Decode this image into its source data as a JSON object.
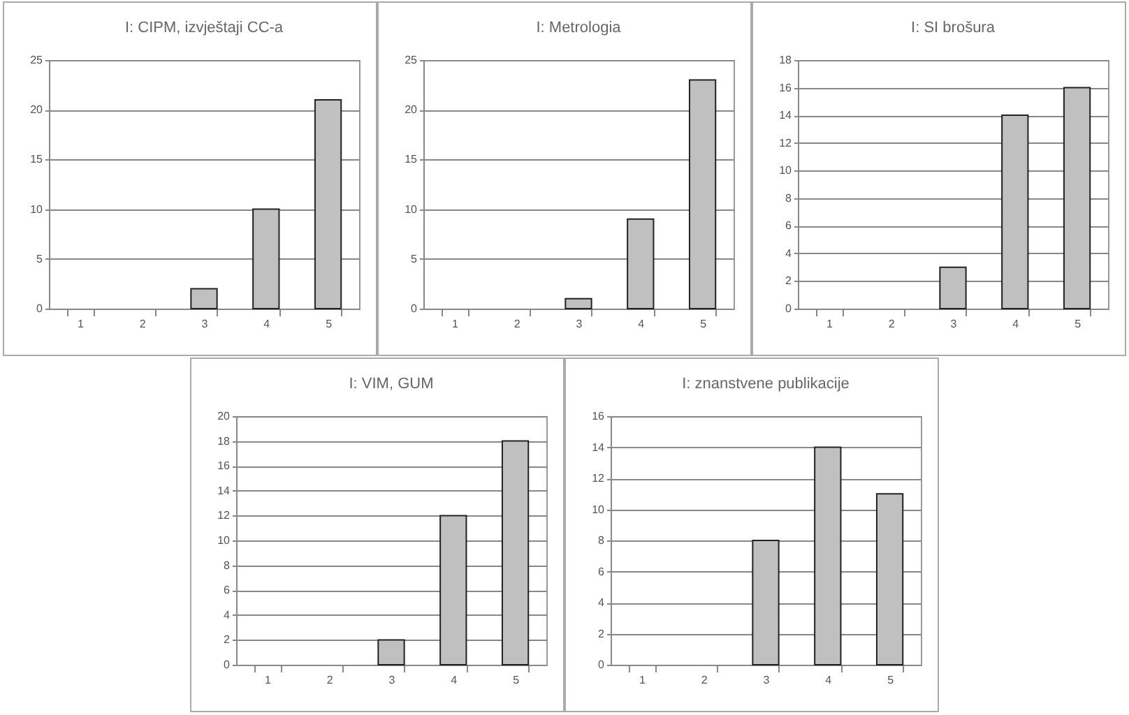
{
  "chart_data": [
    {
      "type": "bar",
      "title": "I: CIPM, izvještaji CC-a",
      "categories": [
        "1",
        "2",
        "3",
        "4",
        "5"
      ],
      "values": [
        0,
        0,
        2,
        10,
        21
      ],
      "color": "#c0c0c0",
      "ylim": [
        0,
        25
      ],
      "yticks": [
        0,
        5,
        10,
        15,
        20,
        25
      ],
      "grid": "y"
    },
    {
      "type": "bar",
      "title": "I: Metrologia",
      "categories": [
        "1",
        "2",
        "3",
        "4",
        "5"
      ],
      "values": [
        0,
        0,
        1,
        9,
        23
      ],
      "color": "#c0c0c0",
      "ylim": [
        0,
        25
      ],
      "yticks": [
        0,
        5,
        10,
        15,
        20,
        25
      ],
      "grid": "y"
    },
    {
      "type": "bar",
      "title": "I: SI brošura",
      "categories": [
        "1",
        "2",
        "3",
        "4",
        "5"
      ],
      "values": [
        0,
        0,
        3,
        14,
        16
      ],
      "color": "#c0c0c0",
      "ylim": [
        0,
        18
      ],
      "yticks": [
        0,
        2,
        4,
        6,
        8,
        10,
        12,
        14,
        16,
        18
      ],
      "grid": "y"
    },
    {
      "type": "bar",
      "title": "I: VIM, GUM",
      "categories": [
        "1",
        "2",
        "3",
        "4",
        "5"
      ],
      "values": [
        0,
        0,
        2,
        12,
        18
      ],
      "color": "#c0c0c0",
      "ylim": [
        0,
        20
      ],
      "yticks": [
        0,
        2,
        4,
        6,
        8,
        10,
        12,
        14,
        16,
        18,
        20
      ],
      "grid": "y"
    },
    {
      "type": "bar",
      "title": "I: znanstvene publikacije",
      "categories": [
        "1",
        "2",
        "3",
        "4",
        "5"
      ],
      "values": [
        0,
        0,
        8,
        14,
        11
      ],
      "color": "#c0c0c0",
      "ylim": [
        0,
        16
      ],
      "yticks": [
        0,
        2,
        4,
        6,
        8,
        10,
        12,
        14,
        16
      ],
      "grid": "y"
    }
  ]
}
